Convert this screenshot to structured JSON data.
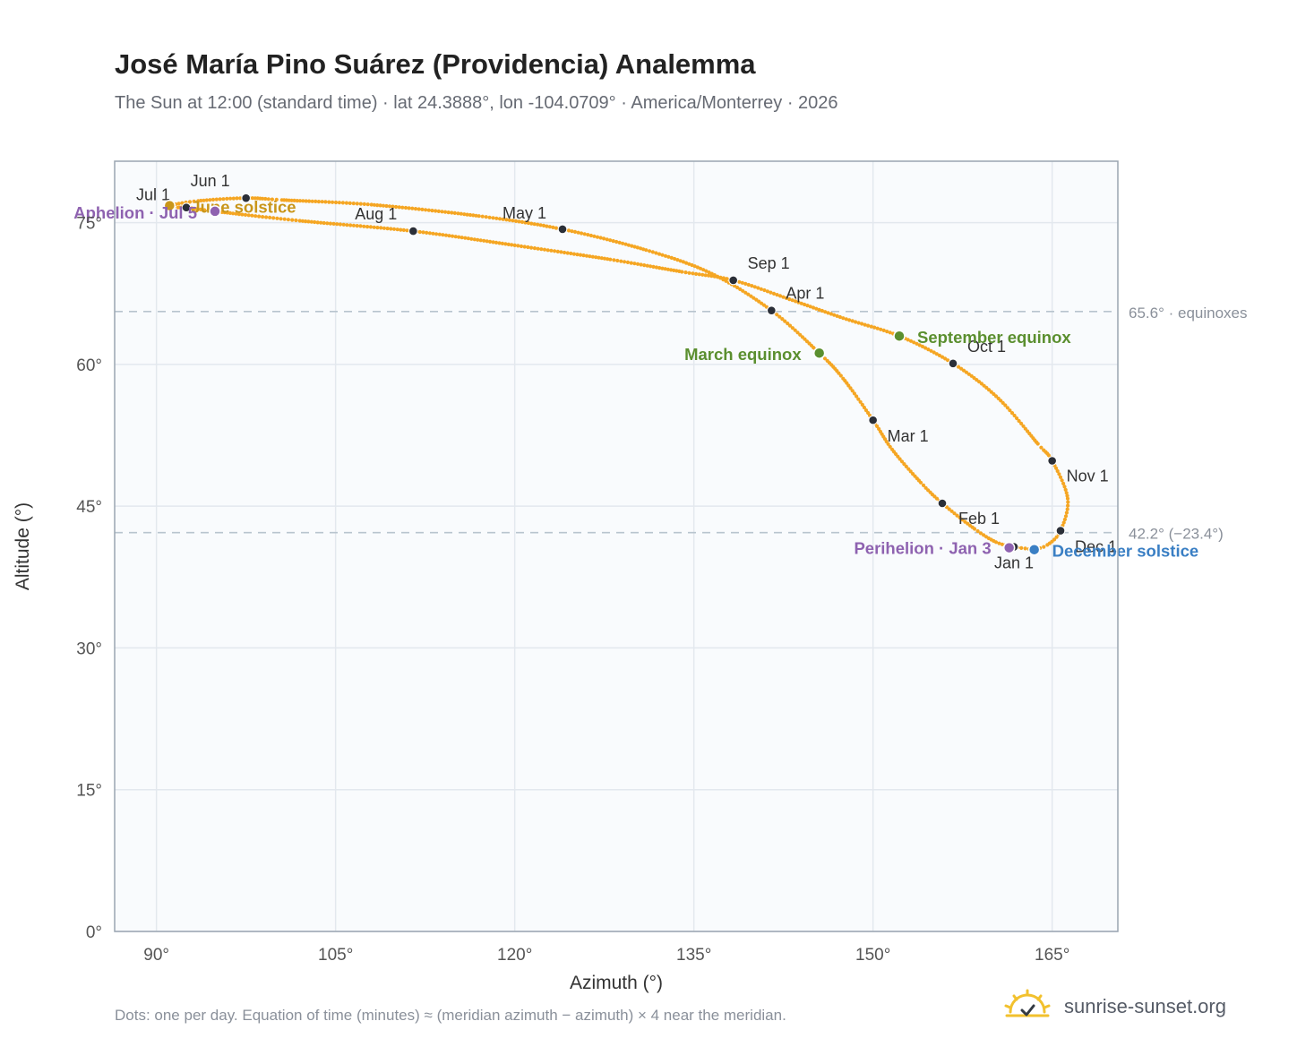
{
  "header": {
    "title": "José María Pino Suárez (Providencia) Analemma",
    "subtitle": "The Sun at 12:00 (standard time) · lat 24.3888°, lon -104.0709° · America/Monterrey · 2026"
  },
  "footer": {
    "note": "Dots: one per day. Equation of time (minutes) ≈ (meridian azimuth − azimuth) × 4 near the meridian.",
    "brand": "sunrise-sunset.org",
    "brand_icon": "sun-logo-icon"
  },
  "chart_data": {
    "type": "scatter",
    "xlabel": "Azimuth (°)",
    "ylabel": "Altitude (°)",
    "xlim": [
      86.5,
      170.5
    ],
    "ylim": [
      0,
      81.5
    ],
    "xticks": [
      90,
      105,
      120,
      135,
      150,
      165
    ],
    "yticks": [
      0,
      15,
      30,
      45,
      60,
      75
    ],
    "tick_suffix": "°",
    "grid": true,
    "colors": {
      "curve": "#f5a623",
      "month_marker": "#2b2f38",
      "equinox": "#5b8f2f",
      "june_solstice": "#c9961a",
      "december_solstice": "#3a7fc4",
      "apsis": "#8e62b0",
      "reference_line": "#b8c4ce",
      "plot_bg": "#f9fbfd",
      "frame": "#9aa5b1"
    },
    "reference_lines": [
      {
        "y": 65.6,
        "label": "65.6° · equinoxes"
      },
      {
        "y": 42.2,
        "label": "42.2° (−23.4°)"
      }
    ],
    "month_markers": [
      {
        "label": "Jan 1",
        "x": 161.8,
        "y": 40.7
      },
      {
        "label": "Feb 1",
        "x": 155.8,
        "y": 45.3
      },
      {
        "label": "Mar 1",
        "x": 150.0,
        "y": 54.1
      },
      {
        "label": "Apr 1",
        "x": 141.5,
        "y": 65.7
      },
      {
        "label": "May 1",
        "x": 124.0,
        "y": 74.3
      },
      {
        "label": "Jun 1",
        "x": 97.5,
        "y": 77.6
      },
      {
        "label": "Jul 1",
        "x": 92.5,
        "y": 76.6
      },
      {
        "label": "Aug 1",
        "x": 111.5,
        "y": 74.1
      },
      {
        "label": "Sep 1",
        "x": 138.3,
        "y": 68.9
      },
      {
        "label": "Oct 1",
        "x": 156.7,
        "y": 60.1
      },
      {
        "label": "Nov 1",
        "x": 165.0,
        "y": 49.8
      },
      {
        "label": "Dec 1",
        "x": 165.7,
        "y": 42.4
      }
    ],
    "events": [
      {
        "label": "March equinox",
        "x": 145.5,
        "y": 61.2
      },
      {
        "label": "June solstice",
        "x": 91.1,
        "y": 76.8
      },
      {
        "label": "September equinox",
        "x": 152.2,
        "y": 63.0
      },
      {
        "label": "December solstice",
        "x": 163.5,
        "y": 40.4
      },
      {
        "label": "Perihelion · Jan 3",
        "x": 161.4,
        "y": 40.6
      },
      {
        "label": "Aphelion · Jul 5",
        "x": 94.9,
        "y": 76.2
      }
    ],
    "curve": [
      [
        163.5,
        40.4
      ],
      [
        161.8,
        40.7
      ],
      [
        160.3,
        41.2
      ],
      [
        158.5,
        42.6
      ],
      [
        155.8,
        45.3
      ],
      [
        154.0,
        47.5
      ],
      [
        151.6,
        51.0
      ],
      [
        150.0,
        54.1
      ],
      [
        147.5,
        58.5
      ],
      [
        145.5,
        61.2
      ],
      [
        141.5,
        65.7
      ],
      [
        136.5,
        69.6
      ],
      [
        131.0,
        72.1
      ],
      [
        124.0,
        74.3
      ],
      [
        117.0,
        75.7
      ],
      [
        108.0,
        76.9
      ],
      [
        100.5,
        77.4
      ],
      [
        97.5,
        77.6
      ],
      [
        93.5,
        77.3
      ],
      [
        91.1,
        76.8
      ],
      [
        91.8,
        76.6
      ],
      [
        92.5,
        76.6
      ],
      [
        94.9,
        76.2
      ],
      [
        102.0,
        75.2
      ],
      [
        111.5,
        74.1
      ],
      [
        120.0,
        72.6
      ],
      [
        128.0,
        71.1
      ],
      [
        134.0,
        69.8
      ],
      [
        138.3,
        68.9
      ],
      [
        143.0,
        66.9
      ],
      [
        147.5,
        64.9
      ],
      [
        152.2,
        63.0
      ],
      [
        156.7,
        60.1
      ],
      [
        160.5,
        56.4
      ],
      [
        163.8,
        51.6
      ],
      [
        165.0,
        49.8
      ],
      [
        166.3,
        45.8
      ],
      [
        165.7,
        42.4
      ],
      [
        164.6,
        40.9
      ],
      [
        163.5,
        40.4
      ]
    ]
  }
}
